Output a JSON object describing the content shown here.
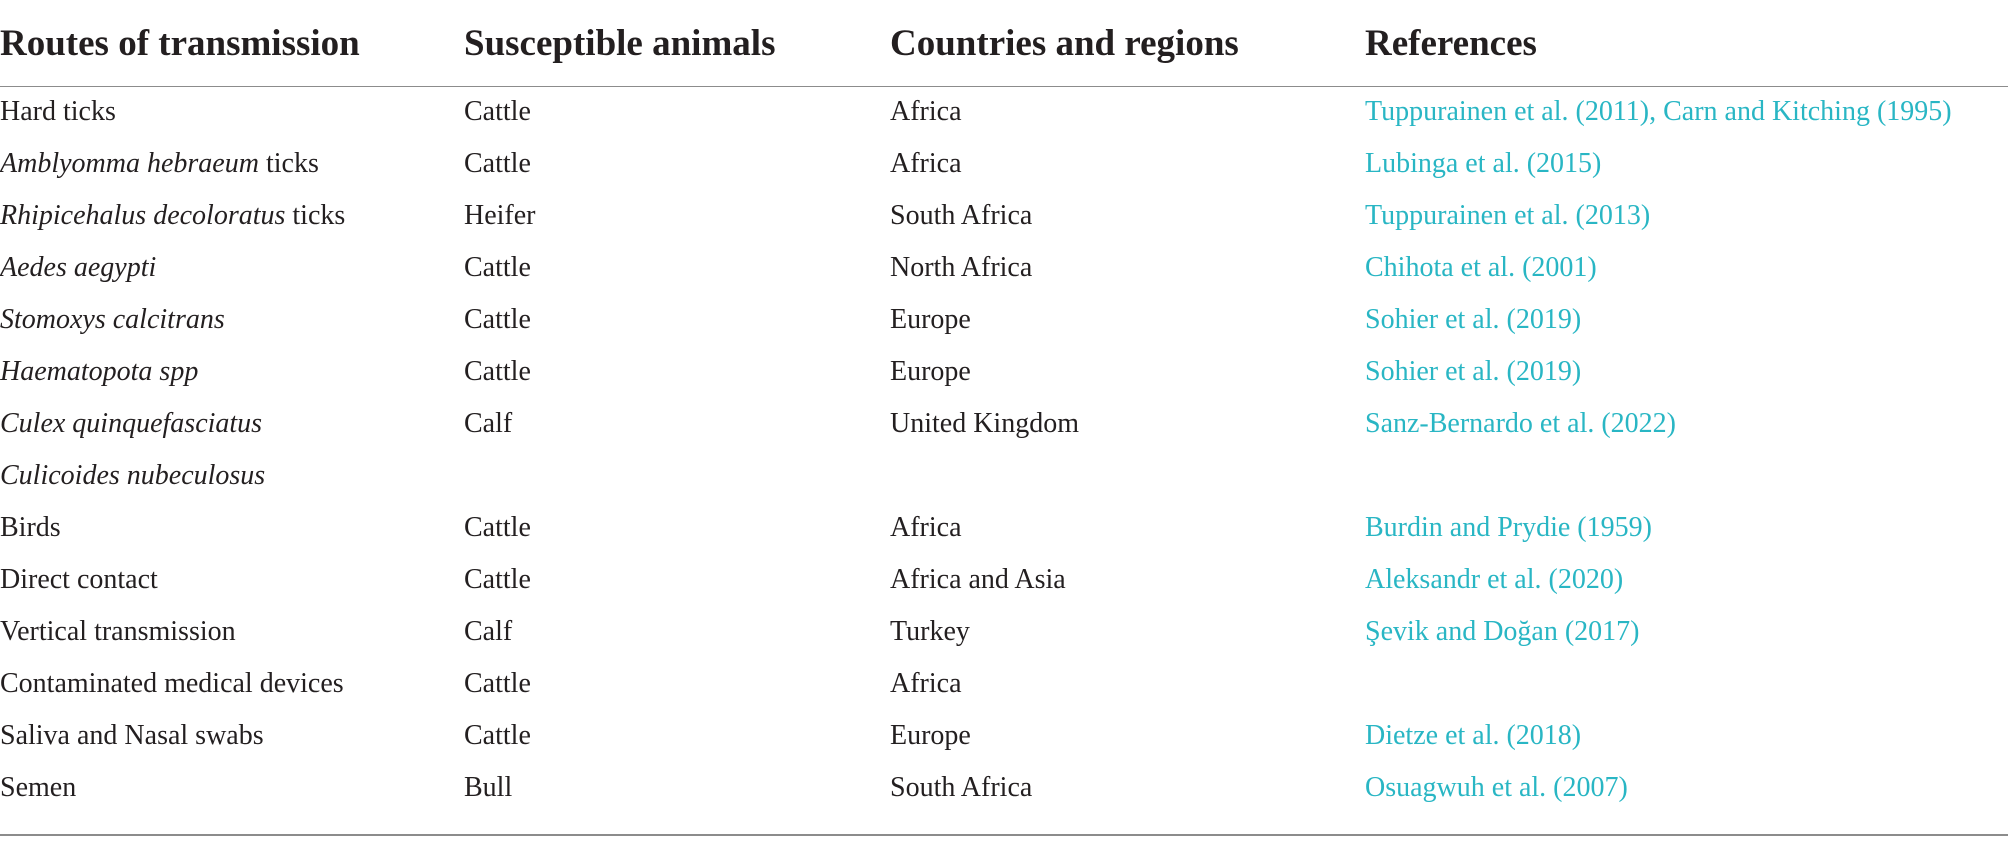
{
  "table": {
    "headers": {
      "routes": "Routes of transmission",
      "animals": "Susceptible animals",
      "countries": "Countries and regions",
      "references": "References"
    },
    "rows": [
      {
        "route_italic": "",
        "route_plain": "Hard ticks",
        "animal": "Cattle",
        "country": "Africa",
        "reference": "Tuppurainen et al. (2011), Carn and Kitching (1995)"
      },
      {
        "route_italic": "Amblyomma hebraeum",
        "route_plain": " ticks",
        "animal": "Cattle",
        "country": "Africa",
        "reference": "Lubinga et al. (2015)"
      },
      {
        "route_italic": "Rhipicehalus decoloratus",
        "route_plain": " ticks",
        "animal": "Heifer",
        "country": "South Africa",
        "reference": "Tuppurainen et al. (2013)"
      },
      {
        "route_italic": "Aedes aegypti",
        "route_plain": "",
        "animal": "Cattle",
        "country": "North Africa",
        "reference": "Chihota et al. (2001)"
      },
      {
        "route_italic": "Stomoxys calcitrans",
        "route_plain": "",
        "animal": "Cattle",
        "country": "Europe",
        "reference": "Sohier et al. (2019)"
      },
      {
        "route_italic": "Haematopota spp",
        "route_plain": "",
        "animal": "Cattle",
        "country": "Europe",
        "reference": "Sohier et al. (2019)"
      },
      {
        "route_italic": "Culex quinquefasciatus",
        "route_plain": "",
        "animal": "Calf",
        "country": "United Kingdom",
        "reference": "Sanz-Bernardo et al. (2022)"
      },
      {
        "route_italic": "Culicoides nubeculosus",
        "route_plain": "",
        "animal": "",
        "country": "",
        "reference": ""
      },
      {
        "route_italic": "",
        "route_plain": "Birds",
        "animal": "Cattle",
        "country": "Africa",
        "reference": "Burdin and Prydie (1959)"
      },
      {
        "route_italic": "",
        "route_plain": "Direct contact",
        "animal": "Cattle",
        "country": "Africa and Asia",
        "reference": "Aleksandr et al. (2020)"
      },
      {
        "route_italic": "",
        "route_plain": "Vertical transmission",
        "animal": "Calf",
        "country": "Turkey",
        "reference": "Şevik and Doğan (2017)"
      },
      {
        "route_italic": "",
        "route_plain": "Contaminated medical devices",
        "animal": "Cattle",
        "country": "Africa",
        "reference": ""
      },
      {
        "route_italic": "",
        "route_plain": "Saliva and Nasal swabs",
        "animal": "Cattle",
        "country": "Europe",
        "reference": "Dietze et al. (2018)"
      },
      {
        "route_italic": "",
        "route_plain": "Semen",
        "animal": "Bull",
        "country": "South Africa",
        "reference": "Osuagwuh et al. (2007)"
      }
    ]
  },
  "colors": {
    "text": "#231f20",
    "reference_link": "#29b6c4",
    "rule": "#8c8c8c"
  }
}
